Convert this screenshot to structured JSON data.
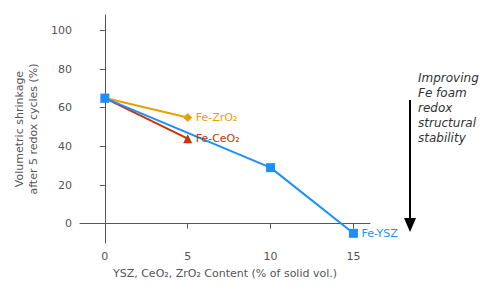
{
  "chart_data": {
    "type": "line",
    "xlabel": "YSZ, CeO₂, ZrO₂ Content (% of solid vol.)",
    "ylabel": "Volumetric shrinkage\nafter 5 redox cycles (%)",
    "xlim": [
      -1.5,
      16
    ],
    "ylim": [
      -10,
      108
    ],
    "xticks": [
      0,
      5,
      10,
      15
    ],
    "yticks": [
      0,
      20,
      40,
      60,
      80,
      100
    ],
    "grid": false,
    "annotation": "Improving\nFe foam\nredox\nstructural\nstability",
    "series": [
      {
        "name": "Fe-ZrO₂",
        "color": "#E8A000",
        "marker": "diamond",
        "x": [
          0,
          5
        ],
        "values": [
          65,
          55
        ]
      },
      {
        "name": "Fe-CeO₂",
        "color": "#CC3300",
        "marker": "triangle",
        "x": [
          0,
          5
        ],
        "values": [
          65,
          44
        ]
      },
      {
        "name": "Fe-YSZ",
        "color": "#1B8FFF",
        "marker": "square",
        "x": [
          0,
          10,
          15
        ],
        "values": [
          65,
          29,
          -5
        ]
      }
    ]
  }
}
